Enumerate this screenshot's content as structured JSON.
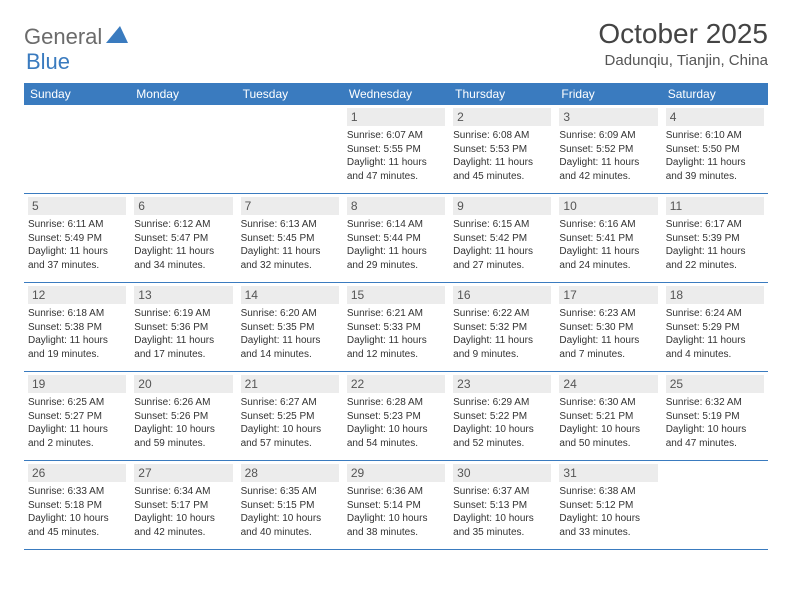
{
  "logo": {
    "text1": "General",
    "text2": "Blue"
  },
  "header": {
    "title": "October 2025",
    "location": "Dadunqiu, Tianjin, China"
  },
  "colors": {
    "brand_blue": "#3a7bbf",
    "logo_gray": "#6b6b6b",
    "text_dark": "#333333",
    "daynum_bg": "#ececec",
    "background": "#ffffff"
  },
  "weekdays": [
    "Sunday",
    "Monday",
    "Tuesday",
    "Wednesday",
    "Thursday",
    "Friday",
    "Saturday"
  ],
  "weeks": [
    [
      null,
      null,
      null,
      {
        "n": "1",
        "sr": "6:07 AM",
        "ss": "5:55 PM",
        "dl": "11 hours and 47 minutes."
      },
      {
        "n": "2",
        "sr": "6:08 AM",
        "ss": "5:53 PM",
        "dl": "11 hours and 45 minutes."
      },
      {
        "n": "3",
        "sr": "6:09 AM",
        "ss": "5:52 PM",
        "dl": "11 hours and 42 minutes."
      },
      {
        "n": "4",
        "sr": "6:10 AM",
        "ss": "5:50 PM",
        "dl": "11 hours and 39 minutes."
      }
    ],
    [
      {
        "n": "5",
        "sr": "6:11 AM",
        "ss": "5:49 PM",
        "dl": "11 hours and 37 minutes."
      },
      {
        "n": "6",
        "sr": "6:12 AM",
        "ss": "5:47 PM",
        "dl": "11 hours and 34 minutes."
      },
      {
        "n": "7",
        "sr": "6:13 AM",
        "ss": "5:45 PM",
        "dl": "11 hours and 32 minutes."
      },
      {
        "n": "8",
        "sr": "6:14 AM",
        "ss": "5:44 PM",
        "dl": "11 hours and 29 minutes."
      },
      {
        "n": "9",
        "sr": "6:15 AM",
        "ss": "5:42 PM",
        "dl": "11 hours and 27 minutes."
      },
      {
        "n": "10",
        "sr": "6:16 AM",
        "ss": "5:41 PM",
        "dl": "11 hours and 24 minutes."
      },
      {
        "n": "11",
        "sr": "6:17 AM",
        "ss": "5:39 PM",
        "dl": "11 hours and 22 minutes."
      }
    ],
    [
      {
        "n": "12",
        "sr": "6:18 AM",
        "ss": "5:38 PM",
        "dl": "11 hours and 19 minutes."
      },
      {
        "n": "13",
        "sr": "6:19 AM",
        "ss": "5:36 PM",
        "dl": "11 hours and 17 minutes."
      },
      {
        "n": "14",
        "sr": "6:20 AM",
        "ss": "5:35 PM",
        "dl": "11 hours and 14 minutes."
      },
      {
        "n": "15",
        "sr": "6:21 AM",
        "ss": "5:33 PM",
        "dl": "11 hours and 12 minutes."
      },
      {
        "n": "16",
        "sr": "6:22 AM",
        "ss": "5:32 PM",
        "dl": "11 hours and 9 minutes."
      },
      {
        "n": "17",
        "sr": "6:23 AM",
        "ss": "5:30 PM",
        "dl": "11 hours and 7 minutes."
      },
      {
        "n": "18",
        "sr": "6:24 AM",
        "ss": "5:29 PM",
        "dl": "11 hours and 4 minutes."
      }
    ],
    [
      {
        "n": "19",
        "sr": "6:25 AM",
        "ss": "5:27 PM",
        "dl": "11 hours and 2 minutes."
      },
      {
        "n": "20",
        "sr": "6:26 AM",
        "ss": "5:26 PM",
        "dl": "10 hours and 59 minutes."
      },
      {
        "n": "21",
        "sr": "6:27 AM",
        "ss": "5:25 PM",
        "dl": "10 hours and 57 minutes."
      },
      {
        "n": "22",
        "sr": "6:28 AM",
        "ss": "5:23 PM",
        "dl": "10 hours and 54 minutes."
      },
      {
        "n": "23",
        "sr": "6:29 AM",
        "ss": "5:22 PM",
        "dl": "10 hours and 52 minutes."
      },
      {
        "n": "24",
        "sr": "6:30 AM",
        "ss": "5:21 PM",
        "dl": "10 hours and 50 minutes."
      },
      {
        "n": "25",
        "sr": "6:32 AM",
        "ss": "5:19 PM",
        "dl": "10 hours and 47 minutes."
      }
    ],
    [
      {
        "n": "26",
        "sr": "6:33 AM",
        "ss": "5:18 PM",
        "dl": "10 hours and 45 minutes."
      },
      {
        "n": "27",
        "sr": "6:34 AM",
        "ss": "5:17 PM",
        "dl": "10 hours and 42 minutes."
      },
      {
        "n": "28",
        "sr": "6:35 AM",
        "ss": "5:15 PM",
        "dl": "10 hours and 40 minutes."
      },
      {
        "n": "29",
        "sr": "6:36 AM",
        "ss": "5:14 PM",
        "dl": "10 hours and 38 minutes."
      },
      {
        "n": "30",
        "sr": "6:37 AM",
        "ss": "5:13 PM",
        "dl": "10 hours and 35 minutes."
      },
      {
        "n": "31",
        "sr": "6:38 AM",
        "ss": "5:12 PM",
        "dl": "10 hours and 33 minutes."
      },
      null
    ]
  ],
  "labels": {
    "sunrise": "Sunrise:",
    "sunset": "Sunset:",
    "daylight": "Daylight:"
  }
}
